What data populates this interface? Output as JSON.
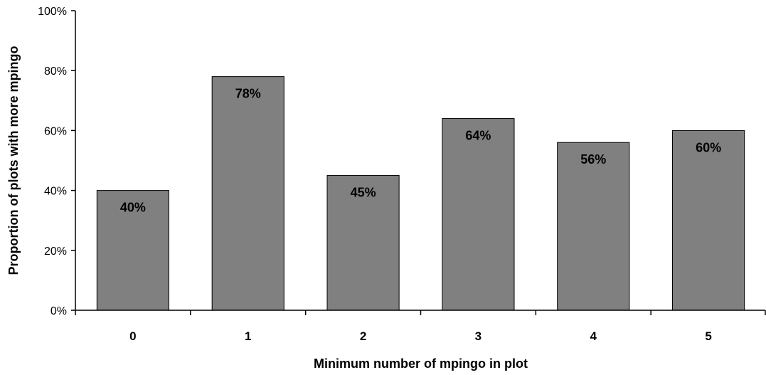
{
  "chart_data": {
    "type": "bar",
    "categories": [
      "0",
      "1",
      "2",
      "3",
      "4",
      "5"
    ],
    "values": [
      40,
      78,
      45,
      64,
      56,
      60
    ],
    "data_labels": [
      "40%",
      "78%",
      "45%",
      "64%",
      "56%",
      "60%"
    ],
    "xlabel": "Minimum number of mpingo in plot",
    "ylabel": "Proportion of plots with more mpingo",
    "ylim": [
      0,
      100
    ],
    "yticks": [
      0,
      20,
      40,
      60,
      80,
      100
    ],
    "ytick_labels": [
      "0%",
      "20%",
      "40%",
      "60%",
      "80%",
      "100%"
    ],
    "grid": false,
    "legend": "none",
    "bar_color": "#808080",
    "bar_edge_color": "#000000"
  }
}
